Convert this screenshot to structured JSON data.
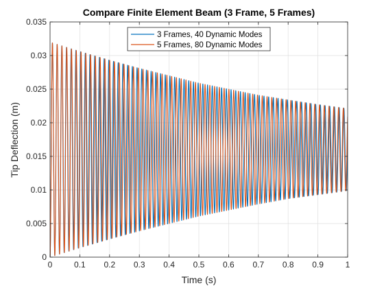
{
  "chart_data": {
    "type": "line",
    "title": "Compare Finite Element Beam (3 Frame, 5 Frames)",
    "xlabel": "Time (s)",
    "ylabel": "Tip Deflection (m)",
    "xlim": [
      0,
      1
    ],
    "ylim": [
      0,
      0.035
    ],
    "grid": true,
    "legend_location": "top",
    "xticks": [
      "0",
      "0.1",
      "0.2",
      "0.3",
      "0.4",
      "0.5",
      "0.6",
      "0.7",
      "0.8",
      "0.9",
      "1"
    ],
    "xtick_values": [
      0,
      0.1,
      0.2,
      0.3,
      0.4,
      0.5,
      0.6,
      0.7,
      0.8,
      0.9,
      1
    ],
    "yticks": [
      "0",
      "0.005",
      "0.01",
      "0.015",
      "0.02",
      "0.025",
      "0.03",
      "0.035"
    ],
    "ytick_values": [
      0,
      0.005,
      0.01,
      0.015,
      0.02,
      0.025,
      0.03,
      0.035
    ],
    "series": [
      {
        "name": "3 Frames, 40 Dynamic Modes",
        "color": "#0072BD",
        "frequency_hz": 63.3,
        "envelope_peaks": {
          "x": [
            0,
            0.1,
            0.2,
            0.3,
            0.4,
            0.5,
            0.6,
            0.7,
            0.8,
            0.9,
            1
          ],
          "y": [
            0.032,
            0.0306,
            0.0293,
            0.0281,
            0.027,
            0.0259,
            0.025,
            0.0241,
            0.0234,
            0.0227,
            0.0221
          ]
        },
        "envelope_troughs": {
          "x": [
            0,
            0.1,
            0.2,
            0.3,
            0.4,
            0.5,
            0.6,
            0.7,
            0.8,
            0.9,
            1
          ],
          "y": [
            0.0,
            0.0014,
            0.0027,
            0.0039,
            0.005,
            0.0061,
            0.007,
            0.0079,
            0.0087,
            0.0093,
            0.0099
          ]
        }
      },
      {
        "name": "5 Frames, 80 Dynamic Modes",
        "color": "#D95319",
        "frequency_hz": 62.4,
        "envelope_peaks": {
          "x": [
            0,
            0.1,
            0.2,
            0.3,
            0.4,
            0.5,
            0.6,
            0.7,
            0.8,
            0.9,
            1
          ],
          "y": [
            0.032,
            0.0306,
            0.0293,
            0.0281,
            0.027,
            0.0259,
            0.025,
            0.0241,
            0.0234,
            0.0227,
            0.0221
          ]
        },
        "envelope_troughs": {
          "x": [
            0,
            0.1,
            0.2,
            0.3,
            0.4,
            0.5,
            0.6,
            0.7,
            0.8,
            0.9,
            1
          ],
          "y": [
            0.0,
            0.0014,
            0.0027,
            0.0039,
            0.005,
            0.0061,
            0.007,
            0.0079,
            0.0087,
            0.0093,
            0.0099
          ]
        }
      }
    ]
  }
}
